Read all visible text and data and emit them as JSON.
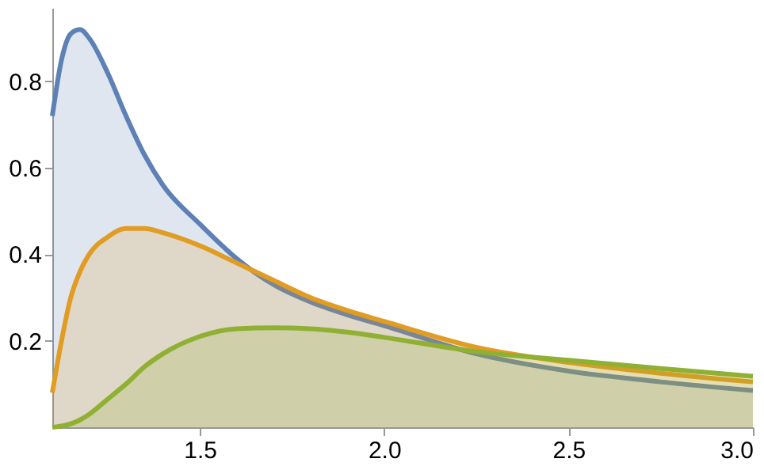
{
  "chart_data": {
    "type": "area",
    "x": [
      1.1,
      1.125,
      1.15,
      1.175,
      1.2,
      1.25,
      1.3,
      1.35,
      1.4,
      1.5,
      1.6,
      1.7,
      1.8,
      1.9,
      2.0,
      2.25,
      2.5,
      2.75,
      3.0
    ],
    "series": [
      {
        "color": "#5e81b5",
        "values": [
          0.72,
          0.85,
          0.91,
          0.92,
          0.9,
          0.82,
          0.72,
          0.63,
          0.56,
          0.47,
          0.39,
          0.33,
          0.29,
          0.26,
          0.235,
          0.17,
          0.13,
          0.105,
          0.085
        ]
      },
      {
        "color": "#e19c24",
        "values": [
          0.08,
          0.2,
          0.3,
          0.36,
          0.4,
          0.44,
          0.46,
          0.46,
          0.45,
          0.42,
          0.38,
          0.34,
          0.3,
          0.27,
          0.245,
          0.185,
          0.15,
          0.125,
          0.105
        ]
      },
      {
        "color": "#8fb032",
        "values": [
          0,
          0.003,
          0.008,
          0.017,
          0.03,
          0.065,
          0.1,
          0.14,
          0.17,
          0.21,
          0.228,
          0.23,
          0.228,
          0.22,
          0.208,
          0.175,
          0.155,
          0.136,
          0.118
        ]
      }
    ],
    "xlim": [
      1.1,
      3.0
    ],
    "ylim": [
      0,
      0.97
    ],
    "xticks": [
      1.5,
      {
        "value": 2,
        "label": "2.0"
      },
      2.5,
      {
        "value": 3,
        "label": "3.0"
      }
    ],
    "yticks": [
      0.2,
      0.4,
      0.6,
      0.8
    ],
    "grid": false,
    "legend": false
  }
}
